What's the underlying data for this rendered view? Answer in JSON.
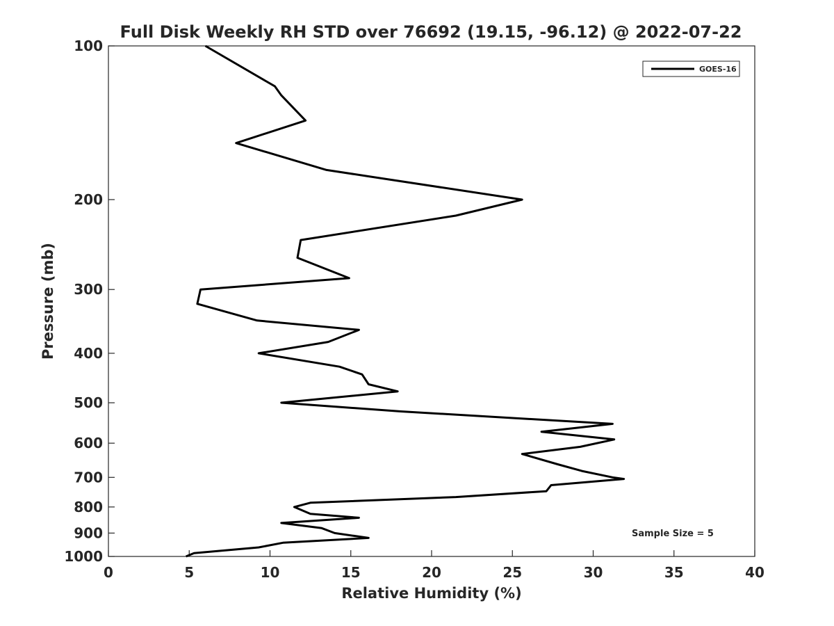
{
  "chart_data": {
    "type": "line",
    "title": "Full Disk Weekly RH STD over 76692 (19.15, -96.12) @ 2022-07-22",
    "xlabel": "Relative Humidity (%)",
    "ylabel": "Pressure (mb)",
    "xlim": [
      0,
      40
    ],
    "ylim": [
      100,
      1000
    ],
    "yscale": "log",
    "y_reversed": true,
    "grid": false,
    "legend_position": "top-right",
    "xticks": [
      0,
      5,
      10,
      15,
      20,
      25,
      30,
      35,
      40
    ],
    "yticks": [
      100,
      200,
      300,
      400,
      500,
      600,
      700,
      800,
      900,
      1000
    ],
    "annotation": "Sample Size = 5",
    "line_color": "#000000",
    "series": [
      {
        "name": "GOES-16",
        "x": [
          6.0,
          10.3,
          10.7,
          12.2,
          7.9,
          13.5,
          25.6,
          21.5,
          11.9,
          11.7,
          14.9,
          5.7,
          5.5,
          9.2,
          15.5,
          13.6,
          9.3,
          14.3,
          15.7,
          16.1,
          17.9,
          10.7,
          18.1,
          31.2,
          26.8,
          31.3,
          29.2,
          25.6,
          27.8,
          29.3,
          31.2,
          31.9,
          27.4,
          27.1,
          21.5,
          12.5,
          11.5,
          12.5,
          15.5,
          10.7,
          13.2,
          14.0,
          16.1,
          10.8,
          9.3,
          5.3,
          4.8
        ],
        "y": [
          100,
          120,
          125,
          140,
          155,
          175,
          200,
          215,
          240,
          260,
          285,
          300,
          320,
          345,
          360,
          380,
          400,
          425,
          440,
          460,
          475,
          500,
          520,
          550,
          570,
          590,
          610,
          630,
          660,
          680,
          700,
          705,
          725,
          745,
          765,
          785,
          800,
          825,
          840,
          860,
          880,
          900,
          920,
          940,
          960,
          985,
          1000
        ]
      }
    ]
  }
}
